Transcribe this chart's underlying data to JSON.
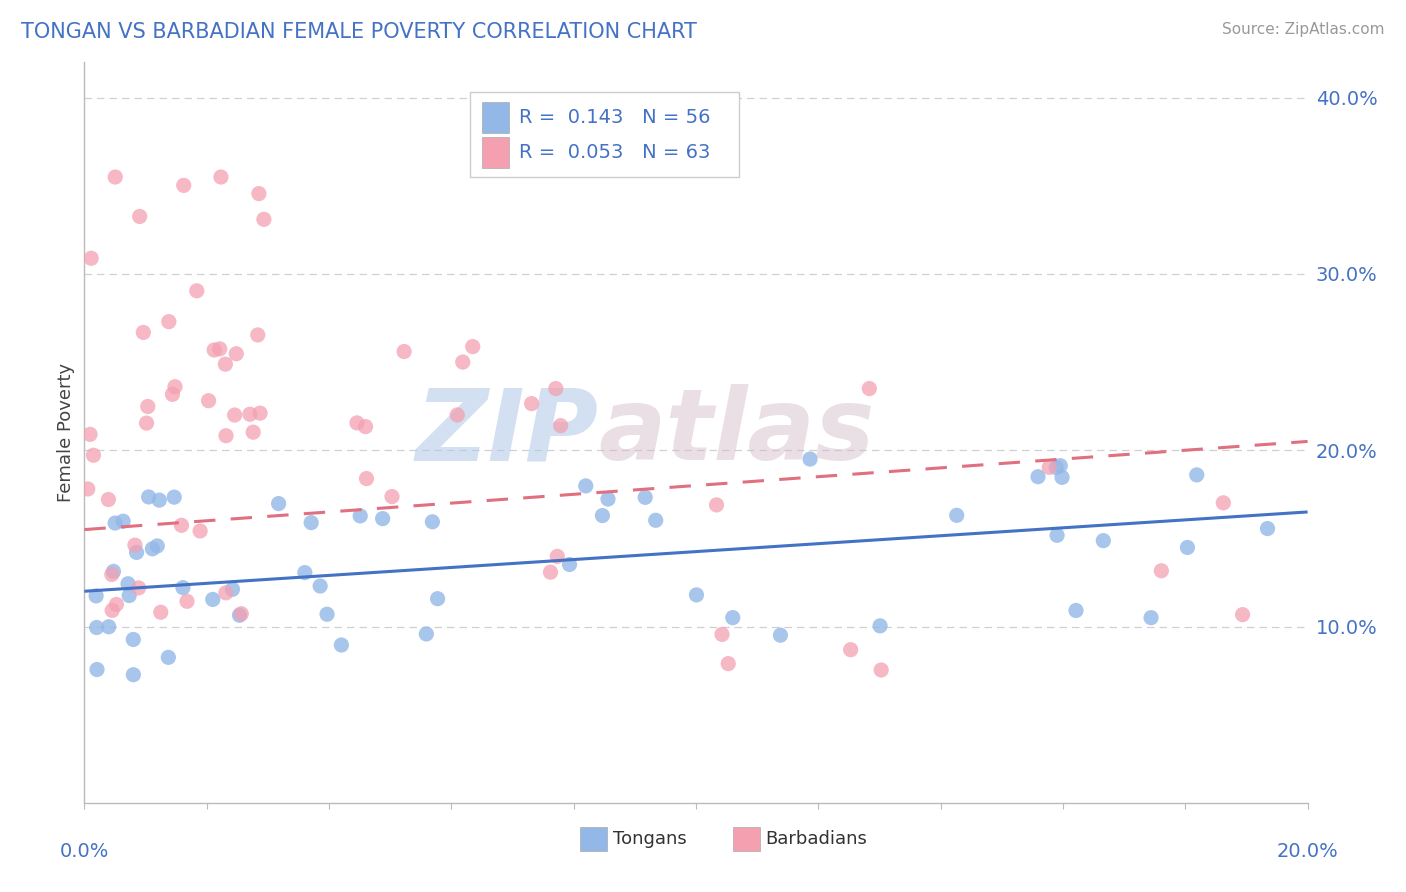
{
  "title": "TONGAN VS BARBADIAN FEMALE POVERTY CORRELATION CHART",
  "source": "Source: ZipAtlas.com",
  "ylabel": "Female Poverty",
  "xmin": 0.0,
  "xmax": 0.2,
  "ymin": 0.0,
  "ymax": 0.42,
  "yticks": [
    0.1,
    0.2,
    0.3,
    0.4
  ],
  "ytick_labels": [
    "10.0%",
    "20.0%",
    "30.0%",
    "40.0%"
  ],
  "tongan_color": "#93b8e8",
  "barbadian_color": "#f4a0b0",
  "tongan_line_color": "#4472c4",
  "barbadian_line_color": "#e07080",
  "watermark_zip": "ZIP",
  "watermark_atlas": "atlas",
  "background_color": "#ffffff",
  "grid_color": "#d0d0d0",
  "tongan_N": 56,
  "barbadian_N": 63,
  "tongan_R": 0.143,
  "barbadian_R": 0.053,
  "tongan_line_x0": 0.0,
  "tongan_line_y0": 0.12,
  "tongan_line_x1": 0.2,
  "tongan_line_y1": 0.165,
  "barbadian_line_x0": 0.0,
  "barbadian_line_y0": 0.155,
  "barbadian_line_x1": 0.2,
  "barbadian_line_y1": 0.205
}
